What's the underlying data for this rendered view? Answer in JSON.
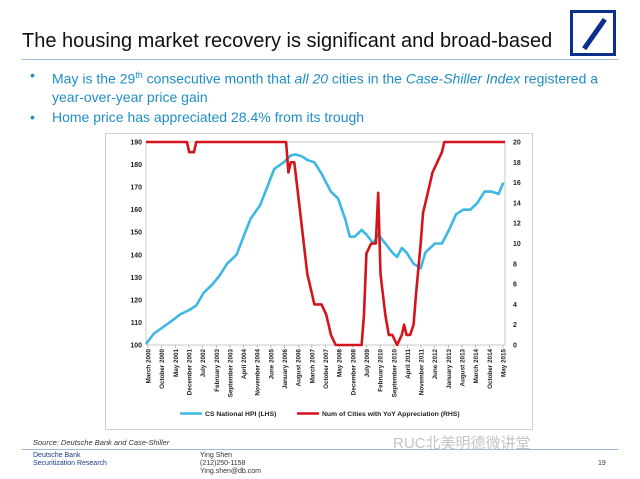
{
  "slide": {
    "title": "The housing market recovery is significant and broad-based",
    "bullet1": {
      "pre": "May is the 29",
      "sup": "th",
      "mid1": " consecutive month that ",
      "em1": "all 20",
      "mid2": " cities in the ",
      "em2": "Case-Shiller  Index",
      "post": " registered a year-over-year price gain"
    },
    "bullet2": "Home price has appreciated 28.4% from its trough",
    "source": "Source:     Deutsche Bank and Case-Shiller",
    "footer": {
      "org_line1": "Deutsche Bank",
      "org_line2": "Securitization Research",
      "name": "Ying Shen",
      "phone": "(212)250-1158",
      "email": "Ying.shen@db.com"
    },
    "page_number": "19",
    "watermark": "RUC北美明德微讲堂"
  },
  "colors": {
    "title": "#111111",
    "bullet_text": "#1f8ec4",
    "hpi_line": "#3db7e4",
    "cities_line": "#d4141b",
    "logo": "#0b2f8a"
  },
  "chart_data": {
    "type": "line",
    "title": "",
    "x_tick_labels": [
      "March 2000",
      "October 2000",
      "May 2001",
      "December 2001",
      "July 2002",
      "February 2003",
      "September 2003",
      "April 2004",
      "November 2004",
      "June 2005",
      "January 2006",
      "August 2006",
      "March 2007",
      "October 2007",
      "May 2008",
      "December 2008",
      "July 2009",
      "February 2010",
      "September 2010",
      "April 2011",
      "November 2011",
      "June 2012",
      "January 2013",
      "August 2013",
      "March 2014",
      "October 2014",
      "May 2015"
    ],
    "x_range": [
      2000.17,
      2015.37
    ],
    "y_left": {
      "label": "CS National HPI (LHS)",
      "min": 100,
      "max": 190,
      "ticks": [
        100,
        110,
        120,
        130,
        140,
        150,
        160,
        170,
        180,
        190
      ]
    },
    "y_right": {
      "label": "Num of Cities with YoY Appreciation (RHS)",
      "min": 0,
      "max": 20,
      "ticks": [
        0,
        2,
        4,
        6,
        8,
        10,
        12,
        14,
        16,
        18,
        20
      ]
    },
    "series": [
      {
        "name": "CS National HPI (LHS)",
        "axis": "left",
        "x": [
          2000.17,
          2000.5,
          2000.9,
          2001.3,
          2001.6,
          2002.0,
          2002.3,
          2002.6,
          2003.0,
          2003.3,
          2003.6,
          2004.0,
          2004.3,
          2004.6,
          2005.0,
          2005.3,
          2005.6,
          2006.0,
          2006.3,
          2006.5,
          2006.8,
          2007.0,
          2007.3,
          2007.6,
          2008.0,
          2008.3,
          2008.6,
          2008.8,
          2009.0,
          2009.3,
          2009.5,
          2009.8,
          2010.0,
          2010.3,
          2010.6,
          2010.8,
          2011.0,
          2011.2,
          2011.5,
          2011.8,
          2012.0,
          2012.4,
          2012.7,
          2013.0,
          2013.3,
          2013.6,
          2013.9,
          2014.2,
          2014.5,
          2014.8,
          2015.1,
          2015.3
        ],
        "values": [
          100.5,
          105,
          108,
          111,
          113.5,
          115.5,
          117.5,
          123,
          127,
          131,
          136,
          140,
          148,
          156,
          162,
          170,
          178,
          181,
          184,
          184.5,
          183.5,
          182,
          181,
          176,
          168,
          165,
          156,
          148,
          148,
          151,
          149,
          145,
          149,
          145,
          141,
          139,
          143,
          141,
          136,
          134,
          141,
          145,
          145,
          151,
          158,
          160,
          160,
          163,
          168,
          168,
          167,
          172
        ]
      },
      {
        "name": "Num of Cities with YoY Appreciation (RHS)",
        "axis": "right",
        "x": [
          2000.17,
          2001.9,
          2002.0,
          2002.2,
          2002.3,
          2006.1,
          2006.2,
          2006.3,
          2006.45,
          2006.6,
          2006.8,
          2007.0,
          2007.1,
          2007.3,
          2007.6,
          2007.8,
          2007.9,
          2008.0,
          2008.2,
          2009.3,
          2009.4,
          2009.5,
          2009.7,
          2009.9,
          2010.0,
          2010.1,
          2010.3,
          2010.45,
          2010.6,
          2010.8,
          2011.0,
          2011.1,
          2011.2,
          2011.35,
          2011.5,
          2011.6,
          2011.8,
          2011.9,
          2012.1,
          2012.3,
          2012.5,
          2012.7,
          2012.8,
          2013.0,
          2015.37
        ],
        "values": [
          20,
          20,
          19,
          19,
          20,
          20,
          17,
          18,
          18,
          15,
          11,
          7,
          6,
          4,
          4,
          3,
          2,
          1,
          0,
          0,
          3,
          9,
          10,
          10,
          15,
          7,
          3,
          1,
          1,
          0,
          1,
          2,
          1,
          1,
          2,
          5,
          10,
          13,
          15,
          17,
          18,
          19,
          20,
          20,
          20
        ]
      }
    ]
  }
}
